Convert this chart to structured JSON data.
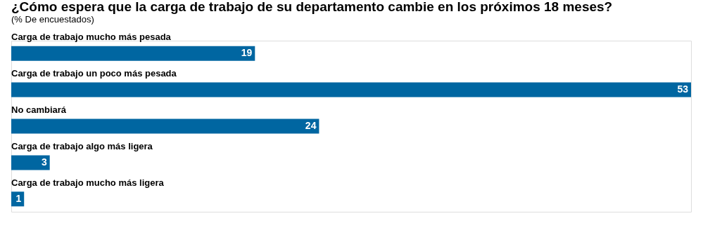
{
  "chart_data": {
    "type": "bar",
    "orientation": "horizontal",
    "title": "¿Cómo espera que la carga de trabajo de su departamento cambie en los próximos 18 meses?",
    "subtitle": "(% De encuestados)",
    "categories": [
      "Carga de trabajo mucho más pesada",
      "Carga de trabajo un poco más pesada",
      "No cambiará",
      "Carga de trabajo algo más ligera",
      "Carga de trabajo mucho más ligera"
    ],
    "values": [
      19,
      53,
      24,
      3,
      1
    ],
    "color": "#0066a1",
    "data_labels": true
  }
}
